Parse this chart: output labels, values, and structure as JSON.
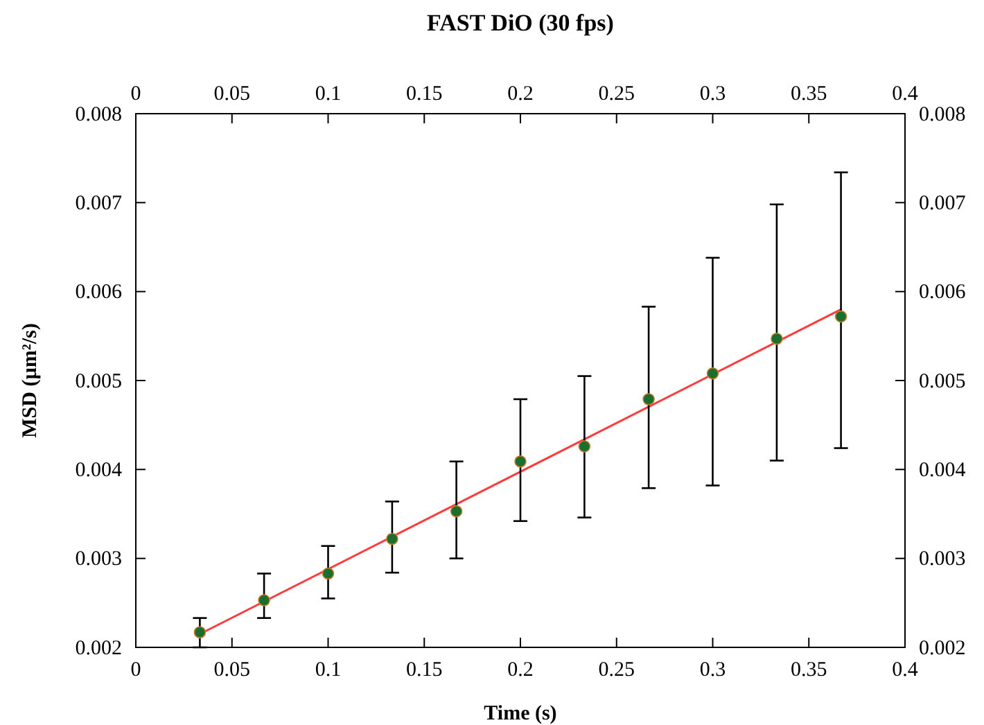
{
  "chart_data": {
    "type": "scatter",
    "title": "FAST DiO (30 fps)",
    "xlabel": "Time (s)",
    "ylabel": "MSD (µm²/s)",
    "xlim": [
      0,
      0.4
    ],
    "xticks": [
      0,
      0.05,
      0.1,
      0.15,
      0.2,
      0.25,
      0.3,
      0.35,
      0.4
    ],
    "x2lim": [
      0,
      0.4
    ],
    "x2ticks": [
      0,
      0.05,
      0.1,
      0.15,
      0.2,
      0.25,
      0.3,
      0.35,
      0.4
    ],
    "ylim": [
      0.002,
      0.008
    ],
    "yticks": [
      0.002,
      0.003,
      0.004,
      0.005,
      0.006,
      0.007,
      0.008
    ],
    "y2lim": [
      0.002,
      0.008
    ],
    "y2ticks": [
      0.002,
      0.003,
      0.004,
      0.005,
      0.006,
      0.007,
      0.008
    ],
    "grid": false,
    "marker": "circle",
    "series": [
      {
        "type": "line",
        "color": "#ff3b3b",
        "line_style": "solid",
        "marker": "none",
        "x": [
          0.0333,
          0.3667
        ],
        "values": [
          0.00215,
          0.0058
        ]
      },
      {
        "color": "#1a6e2e",
        "x": [
          0.0333,
          0.0667,
          0.1,
          0.1333,
          0.1667,
          0.2,
          0.2333,
          0.2667,
          0.3,
          0.3333,
          0.3667
        ],
        "values": [
          0.00217,
          0.00253,
          0.00283,
          0.00322,
          0.00353,
          0.00409,
          0.00426,
          0.00479,
          0.00508,
          0.00547,
          0.00572
        ],
        "errors": [
          [
            0.002,
            0.00233
          ],
          [
            0.00233,
            0.00283
          ],
          [
            0.00255,
            0.00314
          ],
          [
            0.00284,
            0.00364
          ],
          [
            0.003,
            0.00409
          ],
          [
            0.00342,
            0.00479
          ],
          [
            0.00346,
            0.00505
          ],
          [
            0.00379,
            0.00583
          ],
          [
            0.00382,
            0.00638
          ],
          [
            0.0041,
            0.00698
          ],
          [
            0.00424,
            0.00734
          ]
        ]
      }
    ]
  }
}
